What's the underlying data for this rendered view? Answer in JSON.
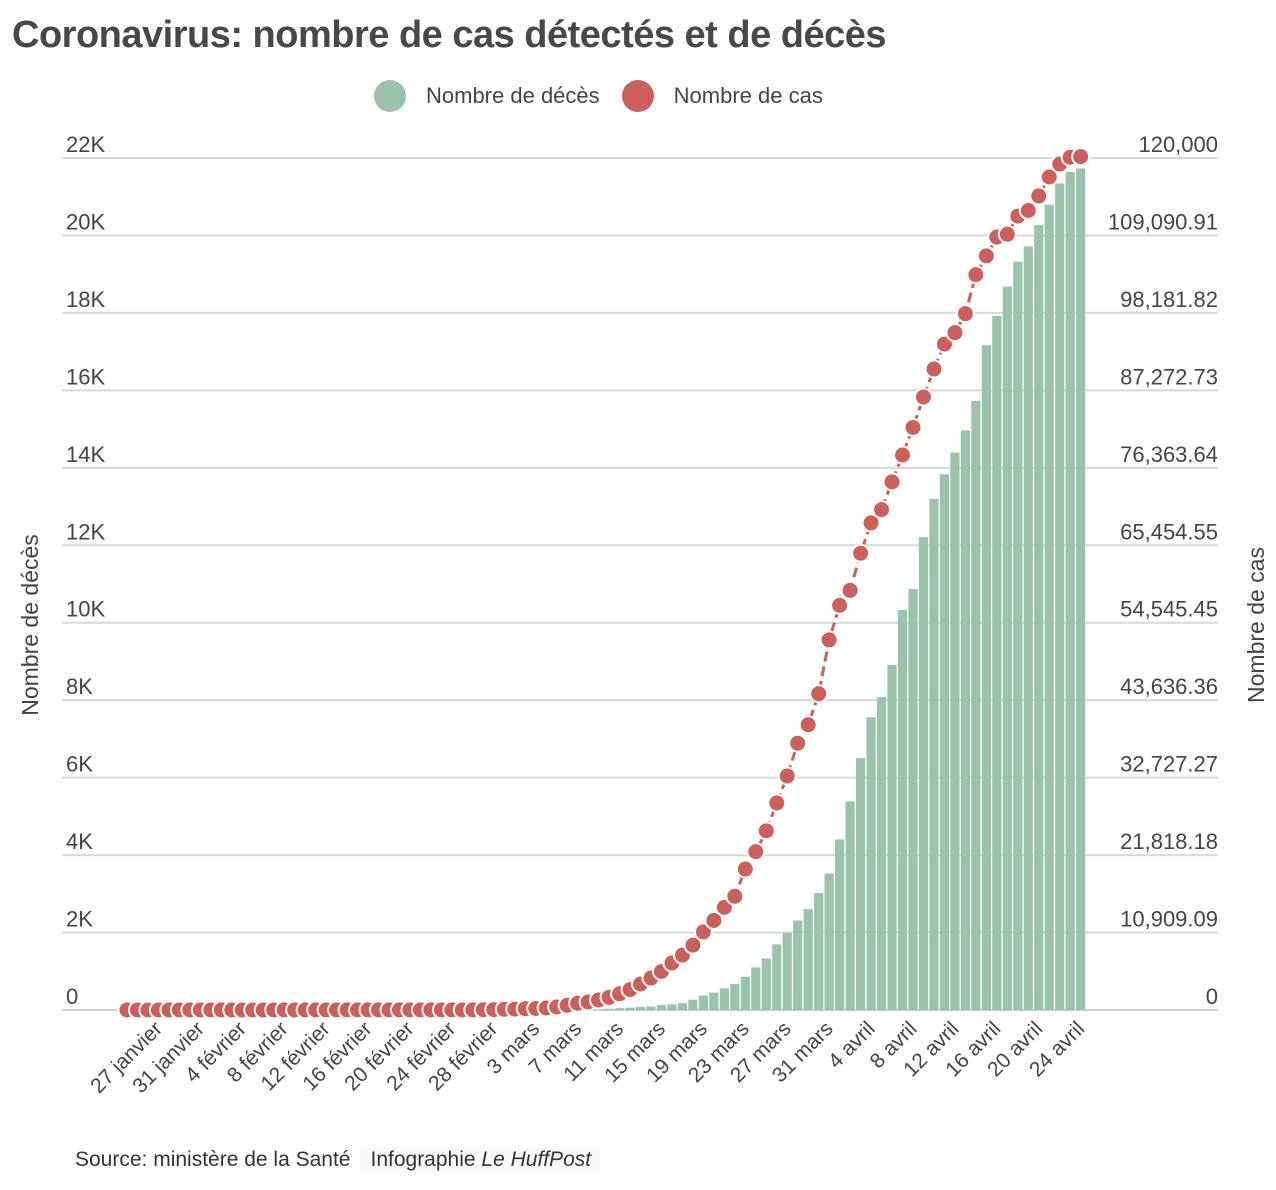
{
  "chart_data": {
    "type": "bar+line",
    "title": "Coronavirus: nombre de cas détectés et de décès",
    "legend": [
      {
        "name": "Nombre de décès",
        "color": "#9ac3ab"
      },
      {
        "name": "Nombre de cas",
        "color": "#cc5f5a"
      }
    ],
    "legend_placement": "top-center",
    "grid": true,
    "ylabel_left": "Nombre de décès",
    "ylabel_right": "Nombre de cas",
    "ylim_left": [
      0,
      22000
    ],
    "ylim_right": [
      0,
      120000
    ],
    "yticks_left": [
      "0",
      "2K",
      "4K",
      "6K",
      "8K",
      "10K",
      "12K",
      "14K",
      "16K",
      "18K",
      "20K",
      "22K"
    ],
    "yticks_right": [
      "0",
      "10,909.09",
      "21,818.18",
      "32,727.27",
      "43,636.36",
      "54,545.45",
      "65,454.55",
      "76,363.64",
      "87,272.73",
      "98,181.82",
      "109,090.91",
      "120,000"
    ],
    "xtick_labels": [
      "27 janvier",
      "31 janvier",
      "4 février",
      "8 février",
      "12 février",
      "16 février",
      "20 février",
      "24 février",
      "28 février",
      "3 mars",
      "7 mars",
      "11 mars",
      "15 mars",
      "19 mars",
      "23 mars",
      "27 mars",
      "31 mars",
      "4 avril",
      "8 avril",
      "12 avril",
      "16 avril",
      "20 avril",
      "24 avril"
    ],
    "categories": [
      "24 janvier",
      "25 janvier",
      "26 janvier",
      "27 janvier",
      "28 janvier",
      "29 janvier",
      "30 janvier",
      "31 janvier",
      "1 février",
      "2 février",
      "3 février",
      "4 février",
      "5 février",
      "6 février",
      "7 février",
      "8 février",
      "9 février",
      "10 février",
      "11 février",
      "12 février",
      "13 février",
      "14 février",
      "15 février",
      "16 février",
      "17 février",
      "18 février",
      "19 février",
      "20 février",
      "21 février",
      "22 février",
      "23 février",
      "24 février",
      "25 février",
      "26 février",
      "27 février",
      "28 février",
      "29 février",
      "1 mars",
      "2 mars",
      "3 mars",
      "4 mars",
      "5 mars",
      "6 mars",
      "7 mars",
      "8 mars",
      "9 mars",
      "10 mars",
      "11 mars",
      "12 mars",
      "13 mars",
      "14 mars",
      "15 mars",
      "16 mars",
      "17 mars",
      "18 mars",
      "19 mars",
      "20 mars",
      "21 mars",
      "22 mars",
      "23 mars",
      "24 mars",
      "25 mars",
      "26 mars",
      "27 mars",
      "28 mars",
      "29 mars",
      "30 mars",
      "31 mars",
      "1 avril",
      "2 avril",
      "3 avril",
      "4 avril",
      "5 avril",
      "6 avril",
      "7 avril",
      "8 avril",
      "9 avril",
      "10 avril",
      "11 avril",
      "12 avril",
      "13 avril",
      "14 avril",
      "15 avril",
      "16 avril",
      "17 avril",
      "18 avril",
      "19 avril",
      "20 avril",
      "21 avril",
      "22 avril",
      "23 avril",
      "24 avril"
    ],
    "series": [
      {
        "name": "Nombre de décès",
        "type": "bar",
        "axis": "left",
        "values": [
          0,
          0,
          0,
          0,
          0,
          0,
          0,
          0,
          0,
          0,
          0,
          0,
          0,
          0,
          0,
          0,
          0,
          0,
          0,
          0,
          0,
          0,
          1,
          1,
          1,
          1,
          1,
          1,
          1,
          1,
          1,
          1,
          1,
          2,
          2,
          2,
          2,
          2,
          3,
          4,
          4,
          6,
          9,
          16,
          19,
          30,
          33,
          48,
          61,
          79,
          91,
          127,
          148,
          175,
          264,
          372,
          450,
          562,
          674,
          860,
          1100,
          1331,
          1696,
          1995,
          2314,
          2606,
          3024,
          3523,
          4403,
          5387,
          6507,
          7560,
          8078,
          8911,
          10328,
          10869,
          12210,
          13197,
          13832,
          14393,
          14967,
          15729,
          17167,
          17920,
          18681,
          19323,
          19718,
          20265,
          20796,
          21340,
          21640,
          21730
        ]
      },
      {
        "name": "Nombre de cas",
        "type": "line",
        "axis": "right",
        "values": [
          2,
          3,
          3,
          3,
          4,
          5,
          5,
          6,
          6,
          6,
          6,
          6,
          6,
          6,
          6,
          11,
          11,
          11,
          11,
          11,
          11,
          11,
          12,
          12,
          12,
          12,
          12,
          12,
          12,
          12,
          12,
          12,
          12,
          18,
          38,
          57,
          100,
          130,
          191,
          212,
          285,
          423,
          653,
          949,
          1126,
          1412,
          1784,
          2281,
          2876,
          3661,
          4499,
          5423,
          6633,
          7730,
          9134,
          10995,
          12612,
          14459,
          16018,
          19856,
          22304,
          25233,
          29155,
          32964,
          37575,
          40174,
          44550,
          52128,
          56989,
          59105,
          64338,
          68605,
          70478,
          74390,
          78167,
          82048,
          86334,
          90276,
          93790,
          95403,
          98076,
          103573,
          106206,
          108847,
          109252,
          111821,
          112606,
          114657,
          117324,
          119151,
          120100,
          120200
        ]
      }
    ]
  },
  "footer": {
    "source": "Source: ministère de la Santé",
    "credit_prefix": "Infographie ",
    "credit_brand": "Le HuffPost"
  }
}
